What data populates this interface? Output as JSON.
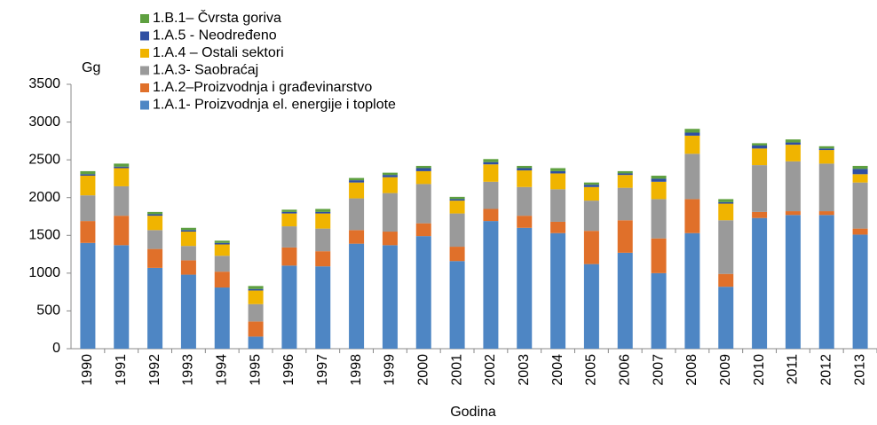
{
  "chart_data": {
    "type": "stacked_bar",
    "ylabel": "Gg",
    "xlabel": "Godina",
    "categories": [
      "1990",
      "1991",
      "1992",
      "1993",
      "1994",
      "1995",
      "1996",
      "1997",
      "1998",
      "1999",
      "2000",
      "2001",
      "2002",
      "2003",
      "2004",
      "2005",
      "2006",
      "2007",
      "2008",
      "2009",
      "2010",
      "2011",
      "2012",
      "2013"
    ],
    "ylim": [
      0,
      3500
    ],
    "yticks": [
      0,
      500,
      1000,
      1500,
      2000,
      2500,
      3000,
      3500
    ],
    "series": [
      {
        "name": "1.A.1- Proizvodnja el. energije i toplote",
        "color": "#4e86c4",
        "values": [
          1400,
          1370,
          1070,
          980,
          810,
          160,
          1100,
          1090,
          1390,
          1370,
          1490,
          1160,
          1690,
          1600,
          1530,
          1120,
          1270,
          1000,
          1530,
          820,
          1730,
          1770,
          1770,
          1510
        ]
      },
      {
        "name": "1.A.2–Proizvodnja i građevinarstvo",
        "color": "#e0702a",
        "values": [
          290,
          390,
          250,
          190,
          210,
          200,
          240,
          200,
          180,
          180,
          170,
          190,
          160,
          160,
          150,
          440,
          430,
          460,
          450,
          170,
          80,
          50,
          50,
          80
        ]
      },
      {
        "name": "1.A.3- Saobraćaj",
        "color": "#9a9a9a",
        "values": [
          340,
          390,
          250,
          190,
          210,
          230,
          280,
          300,
          420,
          510,
          520,
          440,
          360,
          380,
          430,
          400,
          430,
          520,
          600,
          710,
          620,
          660,
          630,
          610
        ]
      },
      {
        "name": "1.A.4 – Ostali sektori",
        "color": "#f0b400",
        "values": [
          260,
          240,
          190,
          190,
          150,
          180,
          170,
          200,
          210,
          210,
          170,
          170,
          230,
          220,
          210,
          180,
          170,
          230,
          240,
          220,
          220,
          220,
          180,
          110
        ]
      },
      {
        "name": "1.A.5 - Neodređeno",
        "color": "#2f4fa3",
        "values": [
          20,
          20,
          20,
          20,
          20,
          20,
          20,
          20,
          30,
          30,
          40,
          20,
          30,
          30,
          30,
          30,
          20,
          40,
          40,
          20,
          40,
          30,
          20,
          70
        ]
      },
      {
        "name": "1.B.1– Čvrsta goriva",
        "color": "#5ea040",
        "values": [
          40,
          40,
          30,
          30,
          30,
          40,
          30,
          40,
          30,
          30,
          30,
          30,
          40,
          30,
          40,
          30,
          30,
          40,
          50,
          40,
          30,
          40,
          30,
          40
        ]
      }
    ]
  }
}
